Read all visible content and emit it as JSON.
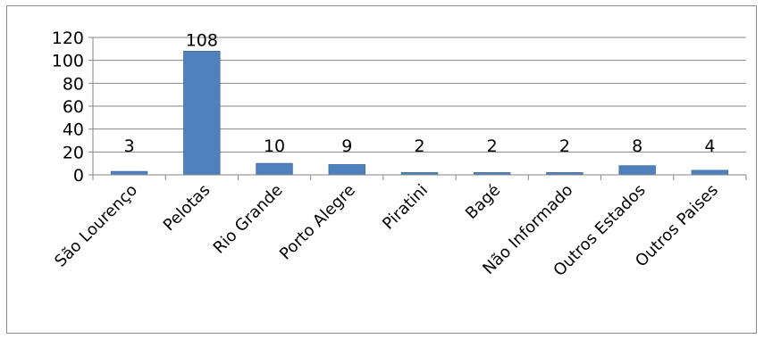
{
  "chart_data": {
    "type": "bar",
    "title": "",
    "xlabel": "",
    "ylabel": "",
    "categories": [
      "São Lourenço",
      "Pelotas",
      "Rio Grande",
      "Porto Alegre",
      "Piratini",
      "Bagé",
      "Não Informado",
      "Outros Estados",
      "Outros Paises"
    ],
    "values": [
      3,
      108,
      10,
      9,
      2,
      2,
      2,
      8,
      4
    ],
    "ylim": [
      0,
      120
    ],
    "yticks": [
      0,
      20,
      40,
      60,
      80,
      100,
      120
    ],
    "grid": true,
    "legend": "none",
    "data_labels": true,
    "bar_color": "#4f81bd"
  }
}
